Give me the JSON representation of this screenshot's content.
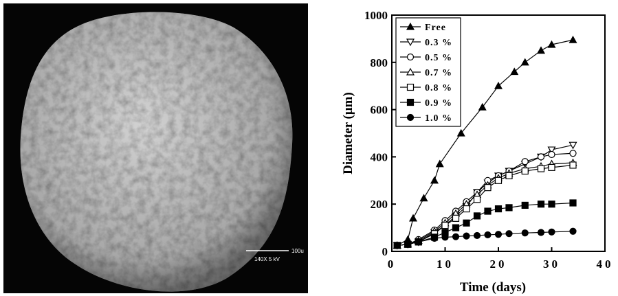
{
  "image": {
    "scale_label": "100u",
    "magnification_label": "140X  5 kV"
  },
  "chart_data": {
    "type": "line",
    "xlabel": "Time (days)",
    "ylabel": "Diameter (μm)",
    "xlim": [
      0,
      40
    ],
    "xticks": [
      0,
      10,
      20,
      30,
      40
    ],
    "ylim": [
      0,
      1000
    ],
    "yticks": [
      0,
      200,
      400,
      600,
      800,
      1000
    ],
    "legend": "upper left",
    "series": [
      {
        "name": "Free",
        "color": "#000000",
        "marker": "triangle",
        "filled": true,
        "x": [
          1,
          3,
          4,
          6,
          8,
          9,
          13,
          17,
          20,
          23,
          25,
          28,
          30,
          34
        ],
        "values": [
          25,
          50,
          140,
          225,
          300,
          370,
          500,
          610,
          700,
          760,
          800,
          850,
          875,
          895
        ]
      },
      {
        "name": "0.3 %",
        "color": "#000000",
        "marker": "triangle-down",
        "filled": false,
        "x": [
          1,
          3,
          5,
          8,
          10,
          12,
          14,
          16,
          18,
          20,
          22,
          25,
          28,
          30,
          34
        ],
        "values": [
          25,
          30,
          40,
          80,
          110,
          150,
          190,
          250,
          290,
          320,
          340,
          370,
          400,
          430,
          450
        ]
      },
      {
        "name": "0.5 %",
        "color": "#000000",
        "marker": "circle",
        "filled": false,
        "x": [
          1,
          3,
          5,
          8,
          10,
          12,
          14,
          16,
          18,
          20,
          22,
          25,
          28,
          30,
          34
        ],
        "values": [
          25,
          30,
          50,
          90,
          130,
          170,
          210,
          250,
          300,
          320,
          340,
          380,
          400,
          410,
          415
        ]
      },
      {
        "name": "0.7 %",
        "color": "#000000",
        "marker": "triangle",
        "filled": false,
        "x": [
          1,
          3,
          5,
          8,
          10,
          12,
          14,
          16,
          18,
          20,
          22,
          25,
          28,
          30,
          34
        ],
        "values": [
          25,
          30,
          45,
          85,
          120,
          160,
          200,
          240,
          280,
          310,
          330,
          350,
          360,
          370,
          375
        ]
      },
      {
        "name": "0.8 %",
        "color": "#000000",
        "marker": "square",
        "filled": false,
        "x": [
          1,
          3,
          5,
          8,
          10,
          12,
          14,
          16,
          18,
          20,
          22,
          25,
          28,
          30,
          34
        ],
        "values": [
          25,
          30,
          40,
          75,
          110,
          140,
          180,
          220,
          270,
          300,
          320,
          340,
          350,
          355,
          365
        ]
      },
      {
        "name": "0.9 %",
        "color": "#000000",
        "marker": "square",
        "filled": true,
        "x": [
          1,
          3,
          5,
          8,
          10,
          12,
          14,
          16,
          18,
          20,
          22,
          25,
          28,
          30,
          34
        ],
        "values": [
          25,
          30,
          40,
          60,
          80,
          100,
          120,
          150,
          170,
          180,
          185,
          195,
          200,
          200,
          205
        ]
      },
      {
        "name": "1.0 %",
        "color": "#000000",
        "marker": "circle",
        "filled": true,
        "x": [
          1,
          3,
          5,
          8,
          10,
          12,
          14,
          16,
          18,
          20,
          22,
          25,
          28,
          30,
          34
        ],
        "values": [
          25,
          30,
          40,
          55,
          60,
          62,
          65,
          67,
          70,
          72,
          75,
          78,
          80,
          82,
          85
        ]
      }
    ]
  }
}
